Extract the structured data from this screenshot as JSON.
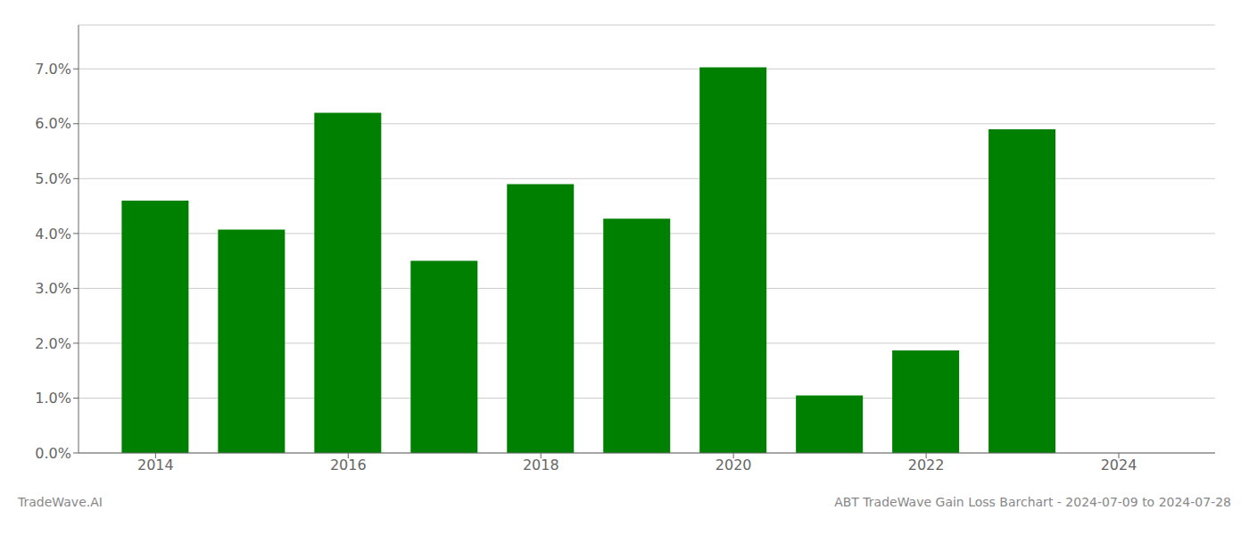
{
  "chart_data": {
    "type": "bar",
    "title": "ABT TradeWave Gain Loss Barchart - 2024-07-09 to 2024-07-28",
    "annotations": [
      "TradeWave.AI"
    ],
    "x": [
      2014,
      2015,
      2016,
      2017,
      2018,
      2019,
      2020,
      2021,
      2022,
      2023
    ],
    "values": [
      0.046,
      0.0407,
      0.062,
      0.035,
      0.049,
      0.0427,
      0.0703,
      0.0105,
      0.0187,
      0.059
    ],
    "color": "#008000",
    "xlim": [
      2013.2,
      2025.0
    ],
    "xticks": [
      2014,
      2016,
      2018,
      2020,
      2022,
      2024
    ],
    "ylim": [
      0,
      0.078
    ],
    "yticks": [
      {
        "value": 0.0,
        "label": "0.0%"
      },
      {
        "value": 0.01,
        "label": "1.0%"
      },
      {
        "value": 0.02,
        "label": "2.0%"
      },
      {
        "value": 0.03,
        "label": "3.0%"
      },
      {
        "value": 0.04,
        "label": "4.0%"
      },
      {
        "value": 0.05,
        "label": "5.0%"
      },
      {
        "value": 0.06,
        "label": "6.0%"
      },
      {
        "value": 0.07,
        "label": "7.0%"
      }
    ],
    "grid": true
  }
}
